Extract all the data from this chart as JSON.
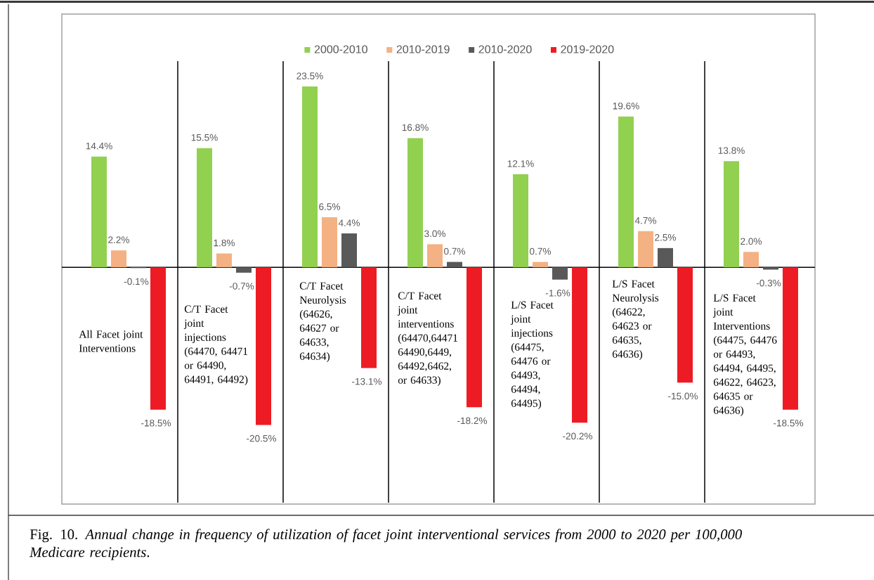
{
  "chart_data": {
    "type": "bar",
    "categories": [
      "All Facet joint Interventions",
      "C/T Facet joint injections (64470, 64471 or 64490, 64491, 64492)",
      "C/T Facet Neurolysis (64626, 64627 or 64633, 64634)",
      "C/T Facet joint interventions (64470,64471 64490,6449, 64492,6462, or 64633)",
      "L/S Facet joint injections (64475, 64476 or 64493, 64494, 64495)",
      "L/S Facet Neurolysis (64622, 64623 or 64635, 64636)",
      "L/S Facet joint Interventions (64475, 64476 or 64493, 64494, 64495, 64622, 64623, 64635 or 64636)"
    ],
    "series": [
      {
        "name": "2000-2010",
        "color": "#92d050",
        "values": [
          14.4,
          15.5,
          23.5,
          16.8,
          12.1,
          19.6,
          13.8
        ],
        "value_labels": [
          "14.4%",
          "15.5%",
          "23.5%",
          "16.8%",
          "12.1%",
          "19.6%",
          "13.8%"
        ]
      },
      {
        "name": "2010-2019",
        "color": "#f4b183",
        "values": [
          2.2,
          1.8,
          6.5,
          3.0,
          0.7,
          4.7,
          2.0
        ],
        "value_labels": [
          "2.2%",
          "1.8%",
          "6.5%",
          "3.0%",
          "0.7%",
          "4.7%",
          "2.0%"
        ]
      },
      {
        "name": "2010-2020",
        "color": "#595959",
        "values": [
          -0.1,
          -0.7,
          4.4,
          0.7,
          -1.6,
          2.5,
          -0.3
        ],
        "value_labels": [
          "-0.1%",
          "-0.7%",
          "4.4%",
          "0.7%",
          "-1.6%",
          "2.5%",
          "-0.3%"
        ]
      },
      {
        "name": "2019-2020",
        "color": "#ed1c24",
        "values": [
          -18.5,
          -20.5,
          -13.1,
          -18.2,
          -20.2,
          -15.0,
          -18.5
        ],
        "value_labels": [
          "-18.5%",
          "-20.5%",
          "-13.1%",
          "-18.2%",
          "-20.2%",
          "-15.0%",
          "-18.5%"
        ]
      }
    ],
    "ylim": [
      -30.6,
      26.8
    ],
    "grid": "x",
    "legend": "top",
    "annotations": [
      "Fig. 10. *Annual change in frequency of utilization of facet joint interventional services from 2000 to 2020 per 100,000 Medicare recipients*."
    ]
  }
}
